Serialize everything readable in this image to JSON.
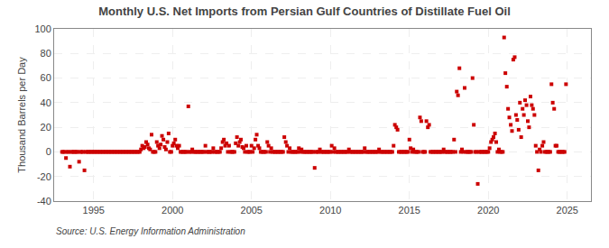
{
  "chart_data": {
    "type": "scatter",
    "title": "Monthly U.S. Net Imports from Persian Gulf Countries of Distillate Fuel Oil",
    "ylabel": "Thousand Barrels per Day",
    "annotation": "Source: U.S. Energy Information Administration",
    "color": "#cc0000",
    "marker": "square",
    "grid": true,
    "xlim": [
      1992.5,
      2026.5
    ],
    "ylim": [
      -40,
      100
    ],
    "xticks": [
      1995,
      2000,
      2005,
      2010,
      2015,
      2020,
      2025
    ],
    "yticks": [
      -40,
      -20,
      0,
      20,
      40,
      60,
      80,
      100
    ],
    "x": [
      1993.0,
      1993.08,
      1993.17,
      1993.25,
      1993.33,
      1993.42,
      1993.5,
      1993.58,
      1993.67,
      1993.75,
      1993.83,
      1993.92,
      1994.0,
      1994.08,
      1994.17,
      1994.25,
      1994.33,
      1994.42,
      1994.5,
      1994.58,
      1994.67,
      1994.75,
      1994.83,
      1994.92,
      1995.0,
      1995.08,
      1995.17,
      1995.25,
      1995.33,
      1995.42,
      1995.5,
      1995.58,
      1995.67,
      1995.75,
      1995.83,
      1995.92,
      1996.0,
      1996.08,
      1996.17,
      1996.25,
      1996.33,
      1996.42,
      1996.5,
      1996.58,
      1996.67,
      1996.75,
      1996.83,
      1996.92,
      1997.0,
      1997.08,
      1997.17,
      1997.25,
      1997.33,
      1997.42,
      1997.5,
      1997.58,
      1997.67,
      1997.75,
      1997.83,
      1997.92,
      1998.0,
      1998.08,
      1998.17,
      1998.25,
      1998.33,
      1998.42,
      1998.5,
      1998.58,
      1998.67,
      1998.75,
      1998.83,
      1998.92,
      1999.0,
      1999.08,
      1999.17,
      1999.25,
      1999.33,
      1999.42,
      1999.5,
      1999.58,
      1999.67,
      1999.75,
      1999.83,
      1999.92,
      2000.0,
      2000.08,
      2000.17,
      2000.25,
      2000.33,
      2000.42,
      2000.5,
      2000.58,
      2000.67,
      2000.75,
      2000.83,
      2000.92,
      2001.0,
      2001.08,
      2001.17,
      2001.25,
      2001.33,
      2001.42,
      2001.5,
      2001.58,
      2001.67,
      2001.75,
      2001.83,
      2001.92,
      2002.0,
      2002.08,
      2002.17,
      2002.25,
      2002.33,
      2002.42,
      2002.5,
      2002.58,
      2002.67,
      2002.75,
      2002.83,
      2002.92,
      2003.0,
      2003.08,
      2003.17,
      2003.25,
      2003.33,
      2003.42,
      2003.5,
      2003.58,
      2003.67,
      2003.75,
      2003.83,
      2003.92,
      2004.0,
      2004.08,
      2004.17,
      2004.25,
      2004.33,
      2004.42,
      2004.5,
      2004.58,
      2004.67,
      2004.75,
      2004.83,
      2004.92,
      2005.0,
      2005.08,
      2005.17,
      2005.25,
      2005.33,
      2005.42,
      2005.5,
      2005.58,
      2005.67,
      2005.75,
      2005.83,
      2005.92,
      2006.0,
      2006.08,
      2006.17,
      2006.25,
      2006.33,
      2006.42,
      2006.5,
      2006.58,
      2006.67,
      2006.75,
      2006.83,
      2006.92,
      2007.0,
      2007.08,
      2007.17,
      2007.25,
      2007.33,
      2007.42,
      2007.5,
      2007.58,
      2007.67,
      2007.75,
      2007.83,
      2007.92,
      2008.0,
      2008.08,
      2008.17,
      2008.25,
      2008.33,
      2008.42,
      2008.5,
      2008.58,
      2008.67,
      2008.75,
      2008.83,
      2008.92,
      2009.0,
      2009.08,
      2009.17,
      2009.25,
      2009.33,
      2009.42,
      2009.5,
      2009.58,
      2009.67,
      2009.75,
      2009.83,
      2009.92,
      2010.0,
      2010.08,
      2010.17,
      2010.25,
      2010.33,
      2010.42,
      2010.5,
      2010.58,
      2010.67,
      2010.75,
      2010.83,
      2010.92,
      2011.0,
      2011.08,
      2011.17,
      2011.25,
      2011.33,
      2011.42,
      2011.5,
      2011.58,
      2011.67,
      2011.75,
      2011.83,
      2011.92,
      2012.0,
      2012.08,
      2012.17,
      2012.25,
      2012.33,
      2012.42,
      2012.5,
      2012.58,
      2012.67,
      2012.75,
      2012.83,
      2012.92,
      2013.0,
      2013.08,
      2013.17,
      2013.25,
      2013.33,
      2013.42,
      2013.5,
      2013.58,
      2013.67,
      2013.75,
      2013.83,
      2013.92,
      2014.0,
      2014.08,
      2014.17,
      2014.25,
      2014.33,
      2014.42,
      2014.5,
      2014.58,
      2014.67,
      2014.75,
      2014.83,
      2014.92,
      2015.0,
      2015.08,
      2015.17,
      2015.25,
      2015.33,
      2015.42,
      2015.5,
      2015.58,
      2015.67,
      2015.75,
      2015.83,
      2015.92,
      2016.0,
      2016.08,
      2016.17,
      2016.25,
      2016.33,
      2016.42,
      2016.5,
      2016.58,
      2016.67,
      2016.75,
      2016.83,
      2016.92,
      2017.0,
      2017.08,
      2017.17,
      2017.25,
      2017.33,
      2017.42,
      2017.5,
      2017.58,
      2017.67,
      2017.75,
      2017.83,
      2017.92,
      2018.0,
      2018.08,
      2018.17,
      2018.25,
      2018.33,
      2018.42,
      2018.5,
      2018.58,
      2018.67,
      2018.75,
      2018.83,
      2018.92,
      2019.0,
      2019.08,
      2019.17,
      2019.25,
      2019.33,
      2019.42,
      2019.5,
      2019.58,
      2019.67,
      2019.75,
      2019.83,
      2019.92,
      2020.0,
      2020.08,
      2020.17,
      2020.25,
      2020.33,
      2020.42,
      2020.5,
      2020.58,
      2020.67,
      2020.75,
      2020.83,
      2020.92,
      2021.0,
      2021.08,
      2021.17,
      2021.25,
      2021.33,
      2021.42,
      2021.5,
      2021.58,
      2021.67,
      2021.75,
      2021.83,
      2021.92,
      2022.0,
      2022.08,
      2022.17,
      2022.25,
      2022.33,
      2022.42,
      2022.5,
      2022.58,
      2022.67,
      2022.75,
      2022.83,
      2022.92,
      2023.0,
      2023.08,
      2023.17,
      2023.25,
      2023.33,
      2023.42,
      2023.5,
      2023.58,
      2023.67,
      2023.75,
      2023.83,
      2023.92,
      2024.0,
      2024.08,
      2024.17,
      2024.25,
      2024.33,
      2024.42,
      2024.5,
      2024.58,
      2024.67,
      2024.75,
      2024.83,
      2024.92
    ],
    "values": [
      0,
      0,
      0,
      -5,
      0,
      0,
      -12,
      0,
      0,
      0,
      0,
      0,
      0,
      -8,
      0,
      0,
      0,
      -15,
      0,
      0,
      0,
      0,
      0,
      0,
      0,
      0,
      0,
      0,
      0,
      0,
      0,
      0,
      0,
      0,
      0,
      0,
      0,
      0,
      0,
      0,
      0,
      0,
      0,
      0,
      0,
      0,
      0,
      0,
      0,
      0,
      0,
      0,
      0,
      0,
      0,
      0,
      0,
      0,
      0,
      0,
      2,
      5,
      3,
      4,
      8,
      6,
      3,
      2,
      14,
      0,
      0,
      0,
      8,
      5,
      3,
      6,
      13,
      10,
      4,
      2,
      8,
      15,
      0,
      0,
      5,
      7,
      10,
      5,
      3,
      5,
      0,
      0,
      0,
      0,
      0,
      0,
      37,
      0,
      0,
      2,
      0,
      0,
      0,
      0,
      0,
      0,
      0,
      0,
      0,
      5,
      0,
      0,
      0,
      0,
      0,
      3,
      0,
      0,
      0,
      0,
      0,
      3,
      8,
      10,
      5,
      7,
      0,
      5,
      0,
      0,
      0,
      0,
      7,
      12,
      5,
      8,
      10,
      4,
      3,
      0,
      5,
      0,
      0,
      0,
      5,
      0,
      3,
      10,
      14,
      5,
      3,
      0,
      0,
      0,
      0,
      0,
      8,
      5,
      0,
      3,
      0,
      0,
      0,
      0,
      0,
      0,
      0,
      0,
      0,
      12,
      8,
      5,
      0,
      3,
      0,
      0,
      0,
      0,
      0,
      0,
      3,
      0,
      2,
      0,
      0,
      0,
      0,
      0,
      0,
      0,
      0,
      0,
      -13,
      0,
      0,
      0,
      2,
      0,
      0,
      0,
      0,
      0,
      0,
      0,
      0,
      5,
      0,
      3,
      0,
      0,
      0,
      0,
      0,
      0,
      0,
      0,
      0,
      0,
      2,
      0,
      0,
      0,
      0,
      0,
      0,
      0,
      0,
      0,
      0,
      0,
      3,
      0,
      0,
      0,
      0,
      0,
      0,
      0,
      0,
      0,
      0,
      2,
      0,
      0,
      0,
      0,
      0,
      0,
      0,
      0,
      0,
      0,
      5,
      22,
      20,
      18,
      0,
      0,
      0,
      0,
      0,
      0,
      0,
      0,
      10,
      3,
      0,
      2,
      0,
      0,
      0,
      0,
      28,
      25,
      0,
      0,
      0,
      25,
      20,
      22,
      0,
      0,
      0,
      0,
      0,
      0,
      0,
      0,
      0,
      0,
      2,
      0,
      0,
      0,
      0,
      0,
      0,
      0,
      10,
      0,
      49,
      46,
      68,
      0,
      2,
      0,
      52,
      0,
      0,
      0,
      0,
      0,
      60,
      22,
      0,
      0,
      -26,
      0,
      0,
      0,
      0,
      0,
      0,
      0,
      0,
      3,
      8,
      10,
      12,
      15,
      8,
      0,
      2,
      0,
      0,
      0,
      93,
      64,
      53,
      35,
      28,
      22,
      17,
      75,
      77,
      30,
      26,
      18,
      40,
      12,
      35,
      30,
      42,
      38,
      25,
      20,
      45,
      38,
      35,
      30,
      5,
      0,
      -15,
      2,
      0,
      5,
      8,
      0,
      0,
      0,
      0,
      0,
      55,
      40,
      35,
      5,
      5,
      0,
      0,
      0,
      0,
      0,
      0,
      55
    ]
  }
}
